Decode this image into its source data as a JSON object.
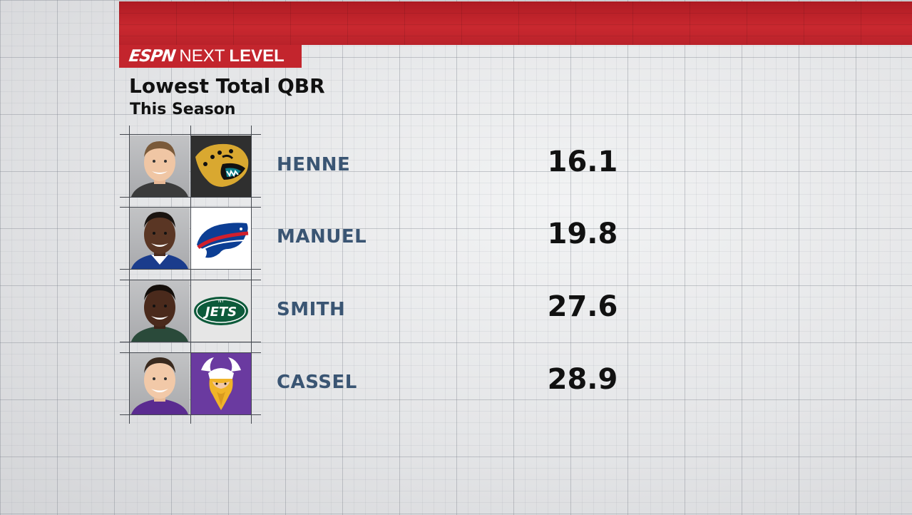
{
  "brand": {
    "network": "ESPN",
    "next": "NEXT",
    "level": "LEVEL"
  },
  "title": "Lowest Total QBR",
  "subtitle": "This Season",
  "players": [
    {
      "name": "HENNE",
      "qbr": "16.1",
      "team_logo": "jaguars-logo",
      "jersey_color": "#3b3b3b",
      "logo_bg": "#2f2f2f"
    },
    {
      "name": "MANUEL",
      "qbr": "19.8",
      "team_logo": "bills-logo",
      "jersey_color": "#1a3c8c",
      "logo_bg": "#ffffff"
    },
    {
      "name": "SMITH",
      "qbr": "27.6",
      "team_logo": "jets-logo",
      "jersey_color": "#2a4a3a",
      "logo_bg": "#e6e6e6"
    },
    {
      "name": "CASSEL",
      "qbr": "28.9",
      "team_logo": "vikings-logo",
      "jersey_color": "#5a2b90",
      "logo_bg": "#6a3aa0"
    }
  ]
}
